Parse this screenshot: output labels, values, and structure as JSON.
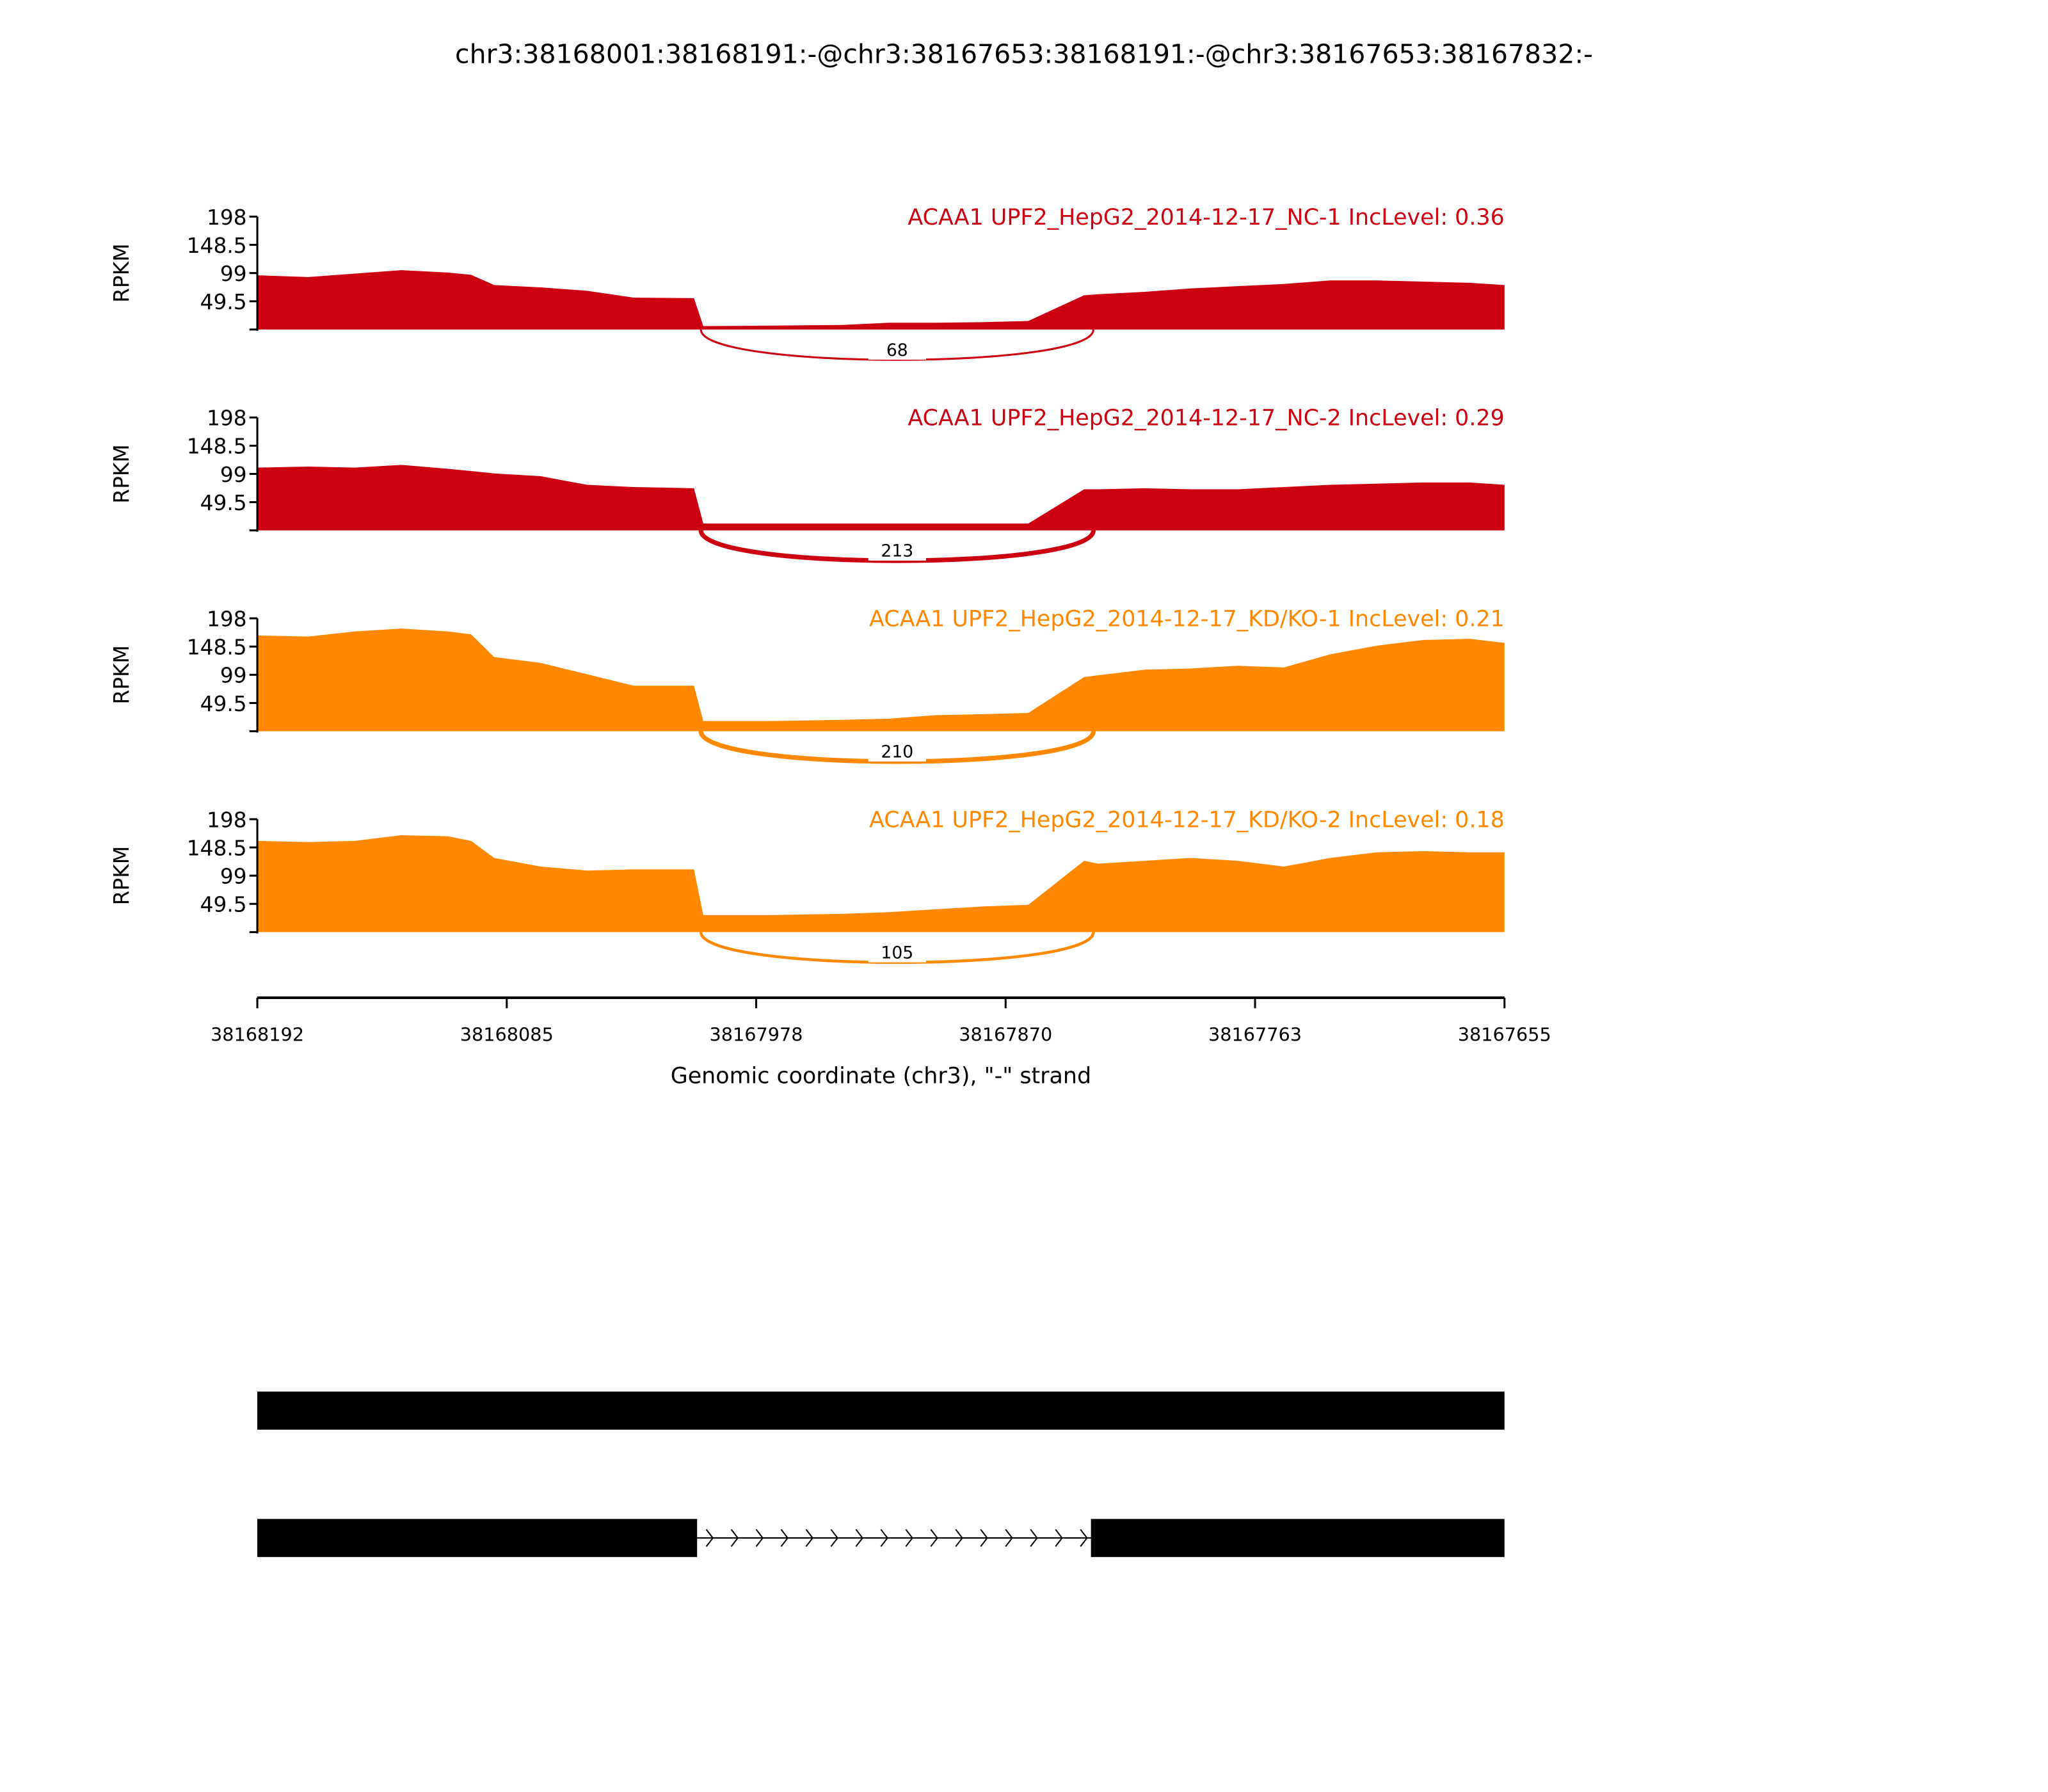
{
  "chart_data": {
    "type": "area",
    "title": "chr3:38168001:38168191:-@chr3:38167653:38168191:-@chr3:38167653:38167832:-",
    "xlabel": "Genomic coordinate (chr3), \"-\" strand",
    "ylabel": "RPKM",
    "ylim": [
      0,
      198
    ],
    "yticks": [
      "198",
      "148.5",
      "99",
      "49.5"
    ],
    "ytick_values": [
      198,
      148.5,
      99,
      49.5
    ],
    "xlim": [
      38168192,
      38167655
    ],
    "xticks": [
      "38168192",
      "38168085",
      "38167978",
      "38167870",
      "38167763",
      "38167655"
    ],
    "xtick_values": [
      38168192,
      38168085,
      38167978,
      38167870,
      38167763,
      38167655
    ],
    "exon1_end": 38168001,
    "exon2_start": 38167832,
    "x": [
      38168192,
      38168170,
      38168150,
      38168130,
      38168110,
      38168100,
      38168090,
      38168070,
      38168050,
      38168030,
      38168004,
      38168000,
      38167970,
      38167940,
      38167920,
      38167900,
      38167880,
      38167860,
      38167836,
      38167830,
      38167810,
      38167790,
      38167770,
      38167750,
      38167730,
      38167710,
      38167690,
      38167670,
      38167655
    ],
    "series": [
      {
        "name": "ACAA1 UPF2_HepG2_2014-12-17_NC-1 IncLevel: 0.36",
        "color": "#cc0011",
        "junction_count": "68",
        "junction_weight": 1.5,
        "values": [
          95,
          92,
          98,
          104,
          100,
          96,
          78,
          74,
          68,
          56,
          55,
          6,
          7,
          8,
          12,
          12,
          13,
          15,
          60,
          62,
          66,
          72,
          76,
          80,
          86,
          86,
          84,
          82,
          78
        ]
      },
      {
        "name": "ACAA1 UPF2_HepG2_2014-12-17_NC-2 IncLevel: 0.29",
        "color": "#cc0011",
        "junction_count": "213",
        "junction_weight": 3.5,
        "values": [
          110,
          112,
          110,
          115,
          108,
          104,
          100,
          95,
          80,
          76,
          74,
          12,
          12,
          12,
          12,
          12,
          12,
          12,
          72,
          72,
          74,
          72,
          72,
          76,
          80,
          82,
          84,
          84,
          80
        ]
      },
      {
        "name": "ACAA1 UPF2_HepG2_2014-12-17_KD/KO-1 IncLevel: 0.21",
        "color": "#ff8800",
        "junction_count": "210",
        "junction_weight": 3.5,
        "values": [
          168,
          166,
          175,
          180,
          175,
          170,
          130,
          120,
          100,
          80,
          80,
          18,
          18,
          20,
          22,
          28,
          30,
          32,
          95,
          98,
          108,
          110,
          115,
          112,
          135,
          150,
          160,
          162,
          155
        ]
      },
      {
        "name": "ACAA1 UPF2_HepG2_2014-12-17_KD/KO-2 IncLevel: 0.18",
        "color": "#ff8800",
        "junction_count": "105",
        "junction_weight": 2.2,
        "values": [
          160,
          158,
          160,
          170,
          168,
          160,
          130,
          115,
          108,
          110,
          110,
          30,
          30,
          32,
          35,
          40,
          45,
          48,
          125,
          120,
          125,
          130,
          125,
          115,
          130,
          140,
          142,
          140,
          140
        ]
      }
    ]
  }
}
